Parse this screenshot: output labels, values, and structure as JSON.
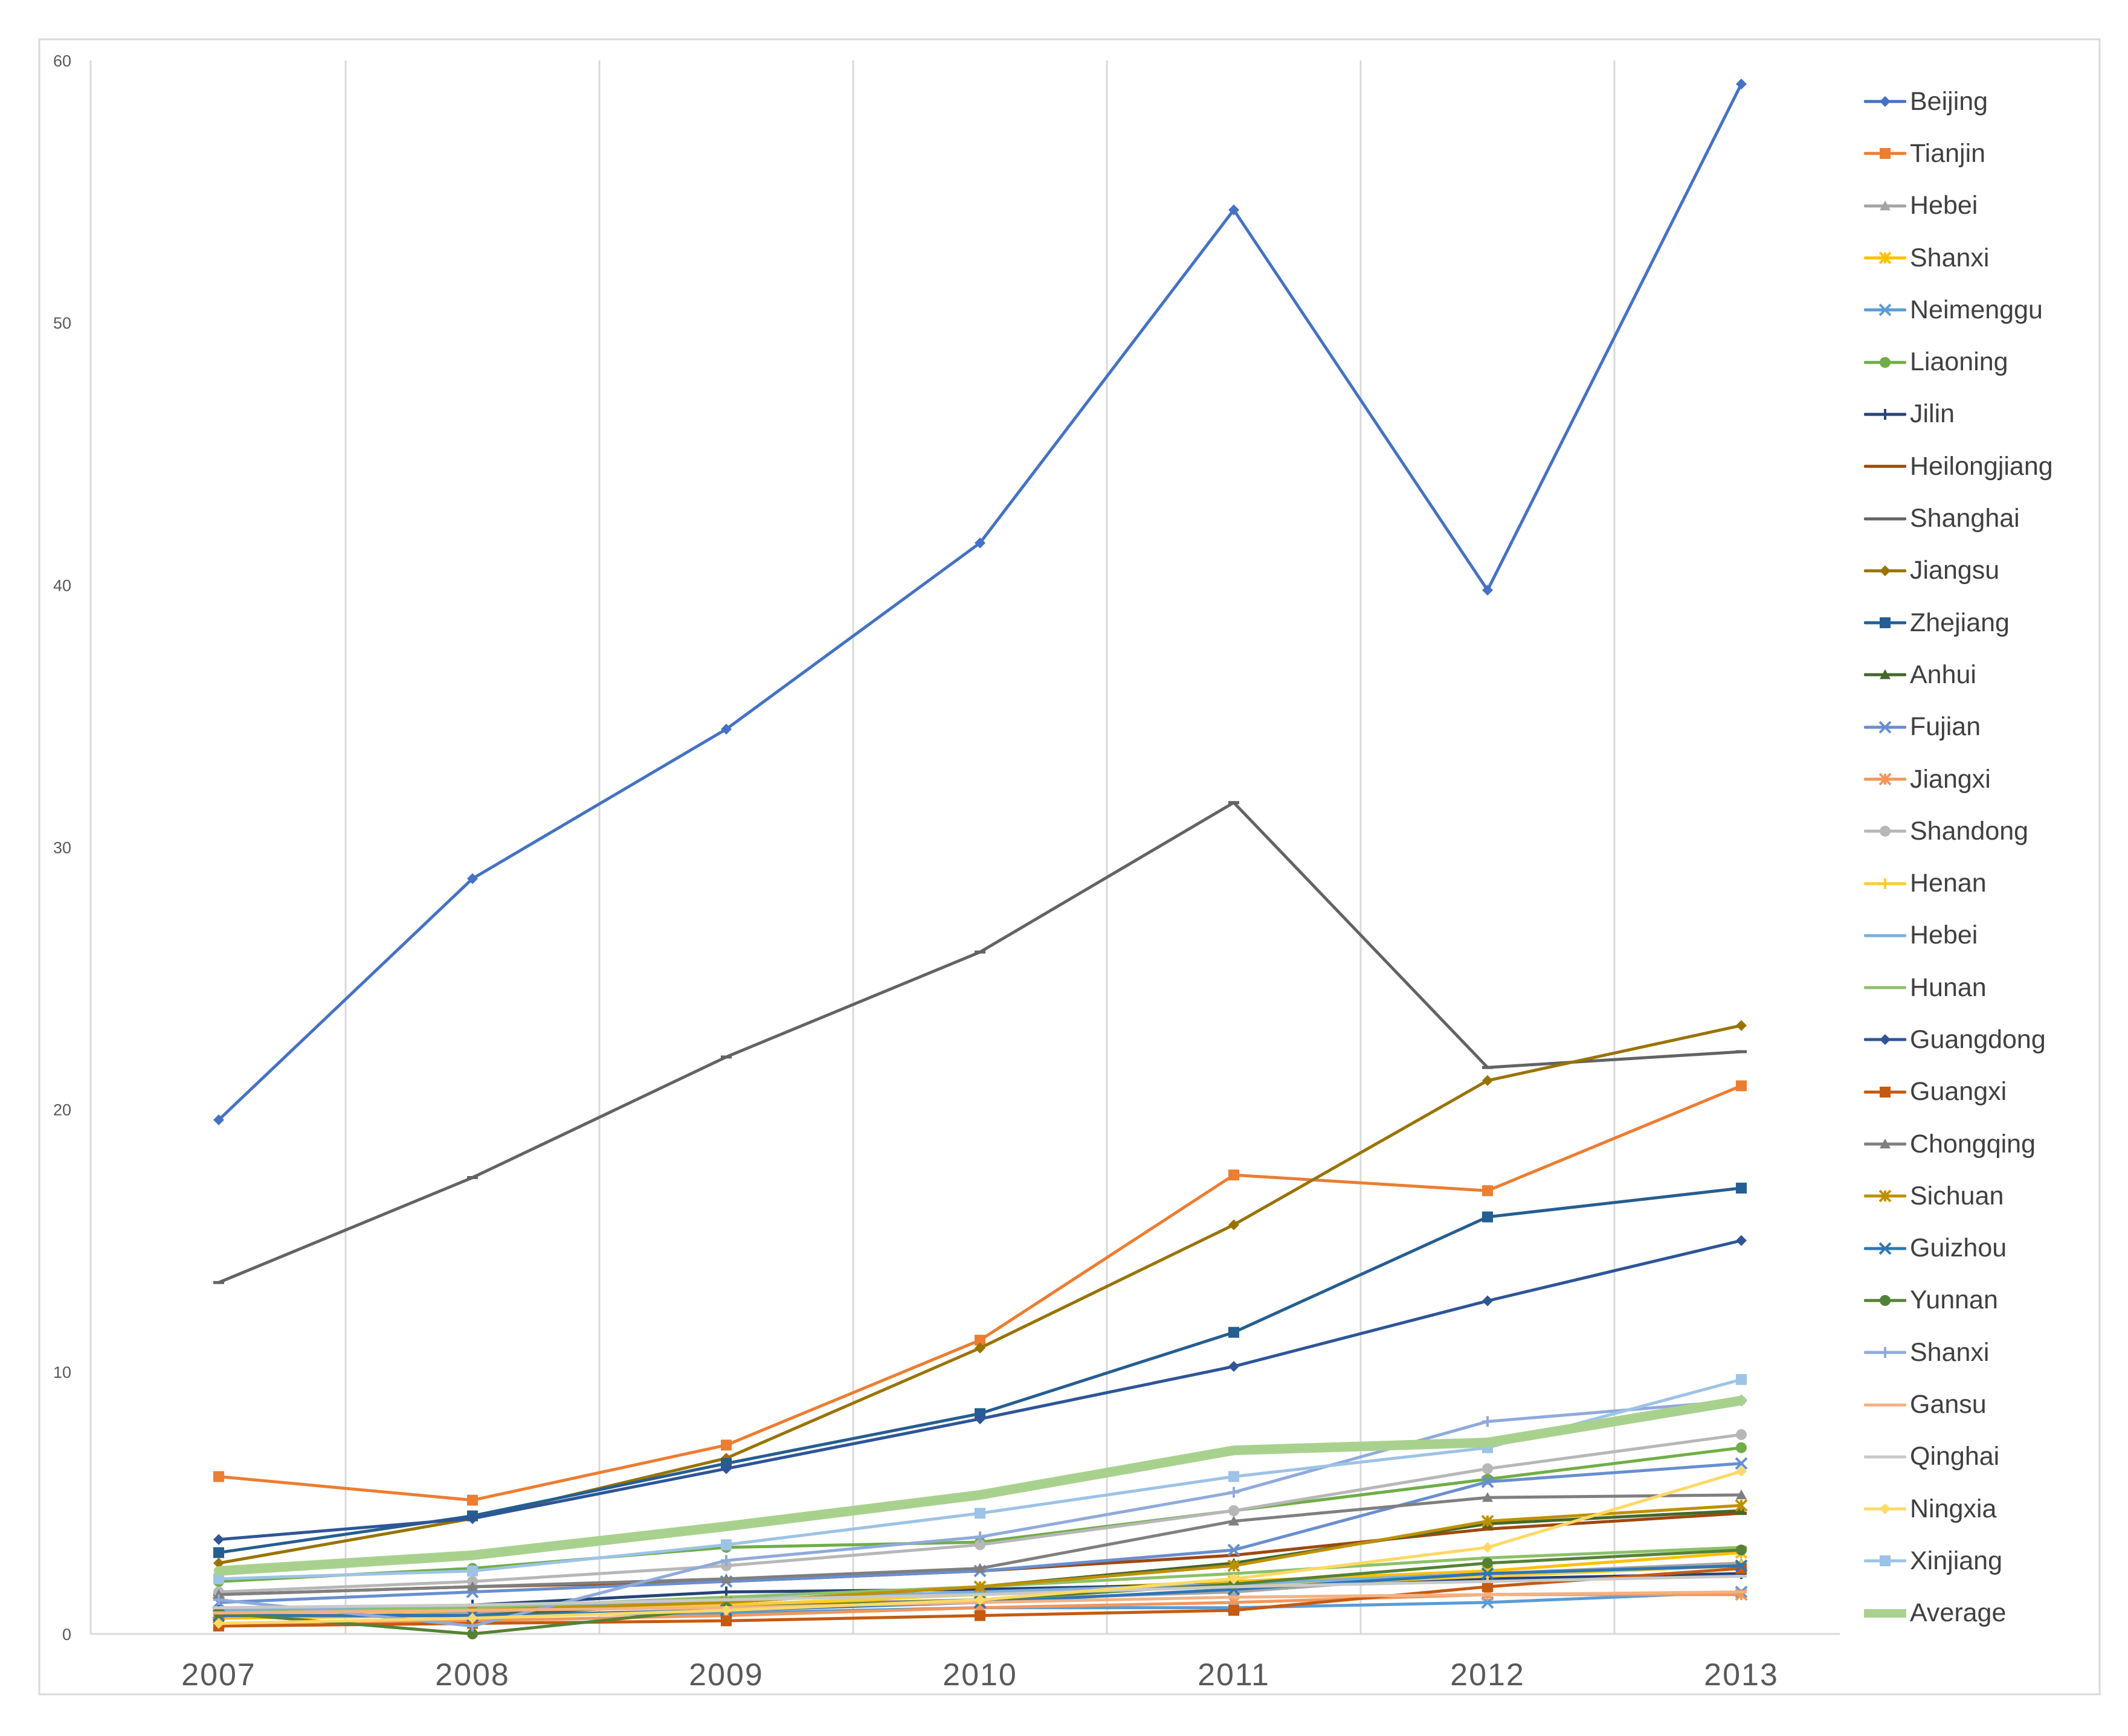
{
  "chart_data": {
    "type": "line",
    "title": "",
    "xlabel": "",
    "ylabel": "",
    "categories": [
      "2007",
      "2008",
      "2009",
      "2010",
      "2011",
      "2012",
      "2013"
    ],
    "ylim": [
      0,
      60
    ],
    "yticks": [
      "0",
      "10",
      "20",
      "30",
      "40",
      "50",
      "60"
    ],
    "grid": "vertical",
    "legend": "right",
    "series": [
      {
        "name": "Beijing",
        "color": "#4472C4",
        "marker": "diamond",
        "values": [
          19.6,
          28.8,
          34.5,
          41.6,
          54.3,
          39.8,
          59.1
        ]
      },
      {
        "name": "Tianjin",
        "color": "#ED7D31",
        "marker": "square",
        "values": [
          6.0,
          5.1,
          7.2,
          11.2,
          17.5,
          16.9,
          20.9
        ]
      },
      {
        "name": "Hebei",
        "color": "#A5A5A5",
        "marker": "triangle",
        "values": [
          1.0,
          0.8,
          1.1,
          1.3,
          1.6,
          2.3,
          2.7
        ]
      },
      {
        "name": "Shanxi",
        "color": "#FFC000",
        "marker": "star",
        "values": [
          0.6,
          0.7,
          0.9,
          1.6,
          2.0,
          2.4,
          3.1
        ]
      },
      {
        "name": "Neimenggu",
        "color": "#5B9BD5",
        "marker": "x",
        "values": [
          0.8,
          0.7,
          0.8,
          1.0,
          1.0,
          1.2,
          1.6
        ]
      },
      {
        "name": "Liaoning",
        "color": "#70AD47",
        "marker": "circle",
        "values": [
          2.0,
          2.5,
          3.3,
          3.5,
          4.7,
          5.9,
          7.1
        ]
      },
      {
        "name": "Jilin",
        "color": "#264478",
        "marker": "plus",
        "values": [
          0.9,
          1.1,
          1.6,
          1.7,
          1.9,
          2.1,
          2.3
        ]
      },
      {
        "name": "Heilongjiang",
        "color": "#9E480E",
        "marker": "dash",
        "values": [
          1.5,
          1.8,
          2.0,
          2.4,
          3.0,
          4.0,
          4.6
        ]
      },
      {
        "name": "Shanghai",
        "color": "#636363",
        "marker": "dash",
        "values": [
          13.4,
          17.4,
          22.0,
          26.0,
          31.7,
          21.6,
          22.2
        ]
      },
      {
        "name": "Jiangsu",
        "color": "#997300",
        "marker": "diamond",
        "values": [
          2.7,
          4.4,
          6.7,
          10.9,
          15.6,
          21.1,
          23.2
        ]
      },
      {
        "name": "Zhejiang",
        "color": "#255E91",
        "marker": "square",
        "values": [
          3.1,
          4.5,
          6.5,
          8.4,
          11.5,
          15.9,
          17.0
        ]
      },
      {
        "name": "Anhui",
        "color": "#43682B",
        "marker": "triangle",
        "values": [
          0.7,
          0.7,
          1.2,
          1.8,
          2.7,
          4.2,
          4.7
        ]
      },
      {
        "name": "Fujian",
        "color": "#698ED0",
        "marker": "x",
        "values": [
          1.2,
          1.6,
          2.0,
          2.4,
          3.2,
          5.8,
          6.5
        ]
      },
      {
        "name": "Jiangxi",
        "color": "#F1975A",
        "marker": "star",
        "values": [
          0.4,
          0.5,
          0.7,
          1.0,
          1.2,
          1.5,
          1.5
        ]
      },
      {
        "name": "Shandong",
        "color": "#B7B7B7",
        "marker": "circle",
        "values": [
          1.6,
          2.0,
          2.6,
          3.4,
          4.7,
          6.3,
          7.6
        ]
      },
      {
        "name": "Henan",
        "color": "#FFCD33",
        "marker": "plus",
        "values": [
          0.7,
          0.9,
          1.1,
          1.5,
          1.8,
          2.2,
          2.6
        ]
      },
      {
        "name": "Hebei",
        "color": "#7CAFDD",
        "marker": "dash",
        "values": [
          0.9,
          1.0,
          1.3,
          1.6,
          1.9,
          2.3,
          2.6
        ]
      },
      {
        "name": "Hunan",
        "color": "#8CC168",
        "marker": "dash",
        "values": [
          0.8,
          1.0,
          1.4,
          1.8,
          2.3,
          2.9,
          3.3
        ]
      },
      {
        "name": "Guangdong",
        "color": "#2E5597",
        "marker": "diamond",
        "values": [
          3.6,
          4.4,
          6.3,
          8.2,
          10.2,
          12.7,
          15.0
        ]
      },
      {
        "name": "Guangxi",
        "color": "#C55A11",
        "marker": "square",
        "values": [
          0.3,
          0.4,
          0.5,
          0.7,
          0.9,
          1.8,
          2.5
        ]
      },
      {
        "name": "Chongqing",
        "color": "#7F7F7F",
        "marker": "triangle",
        "values": [
          1.5,
          1.8,
          2.1,
          2.5,
          4.3,
          5.2,
          5.3
        ]
      },
      {
        "name": "Sichuan",
        "color": "#BF9000",
        "marker": "star",
        "values": [
          0.8,
          0.9,
          1.2,
          1.8,
          2.6,
          4.3,
          4.9
        ]
      },
      {
        "name": "Guizhou",
        "color": "#2E75B6",
        "marker": "x",
        "values": [
          0.7,
          0.7,
          0.9,
          1.2,
          1.7,
          2.3,
          2.6
        ]
      },
      {
        "name": "Yunnan",
        "color": "#548235",
        "marker": "circle",
        "values": [
          0.8,
          0.0,
          1.0,
          1.3,
          1.9,
          2.7,
          3.2
        ]
      },
      {
        "name": "Shanxi",
        "color": "#8FAADC",
        "marker": "plus",
        "values": [
          1.3,
          0.3,
          2.8,
          3.7,
          5.4,
          8.1,
          8.9
        ]
      },
      {
        "name": "Gansu",
        "color": "#F4B183",
        "marker": "dash",
        "values": [
          0.8,
          0.9,
          1.0,
          1.2,
          1.4,
          1.5,
          1.6
        ]
      },
      {
        "name": "Qinghai",
        "color": "#C9C9C9",
        "marker": "dash",
        "values": [
          1.0,
          1.1,
          1.3,
          1.5,
          1.8,
          2.0,
          2.2
        ]
      },
      {
        "name": "Ningxia",
        "color": "#FFD966",
        "marker": "diamond",
        "values": [
          0.4,
          0.6,
          0.9,
          1.3,
          2.1,
          3.3,
          6.2
        ]
      },
      {
        "name": "Xinjiang",
        "color": "#9DC3E6",
        "marker": "square",
        "values": [
          2.1,
          2.4,
          3.4,
          4.6,
          6.0,
          7.1,
          9.7
        ]
      },
      {
        "name": "Average",
        "color": "#A9D18E",
        "marker": "none",
        "thick": true,
        "values": [
          2.4,
          3.0,
          4.1,
          5.3,
          7.0,
          7.3,
          8.9
        ]
      }
    ]
  }
}
